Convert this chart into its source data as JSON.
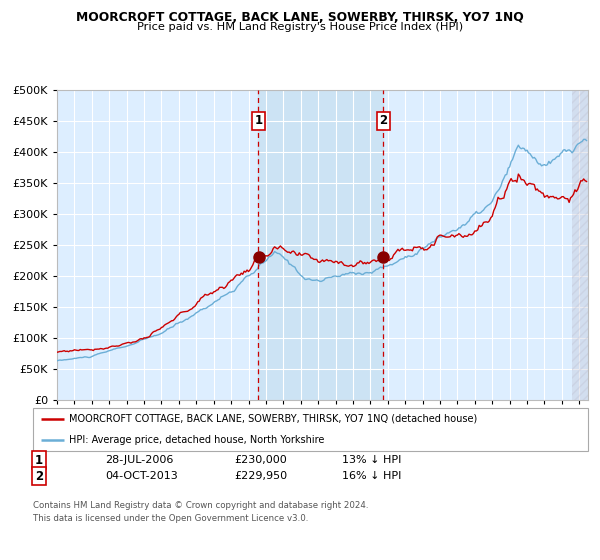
{
  "title": "MOORCROFT COTTAGE, BACK LANE, SOWERBY, THIRSK, YO7 1NQ",
  "subtitle": "Price paid vs. HM Land Registry's House Price Index (HPI)",
  "legend_line1": "MOORCROFT COTTAGE, BACK LANE, SOWERBY, THIRSK, YO7 1NQ (detached house)",
  "legend_line2": "HPI: Average price, detached house, North Yorkshire",
  "transaction1_date": "28-JUL-2006",
  "transaction1_price": 230000,
  "transaction1_hpi": "13% ↓ HPI",
  "transaction2_date": "04-OCT-2013",
  "transaction2_price": 229950,
  "transaction2_hpi": "16% ↓ HPI",
  "footer": "Contains HM Land Registry data © Crown copyright and database right 2024.\nThis data is licensed under the Open Government Licence v3.0.",
  "hpi_color": "#6baed6",
  "price_color": "#cc0000",
  "dashed_color": "#cc0000",
  "marker_color": "#880000",
  "ylim": [
    0,
    500000
  ],
  "yticks": [
    0,
    50000,
    100000,
    150000,
    200000,
    250000,
    300000,
    350000,
    400000,
    450000,
    500000
  ],
  "xlim_start": 1995.0,
  "xlim_end": 2025.5,
  "transaction1_x": 2006.57,
  "transaction2_x": 2013.75,
  "hatch_x": 2024.58
}
